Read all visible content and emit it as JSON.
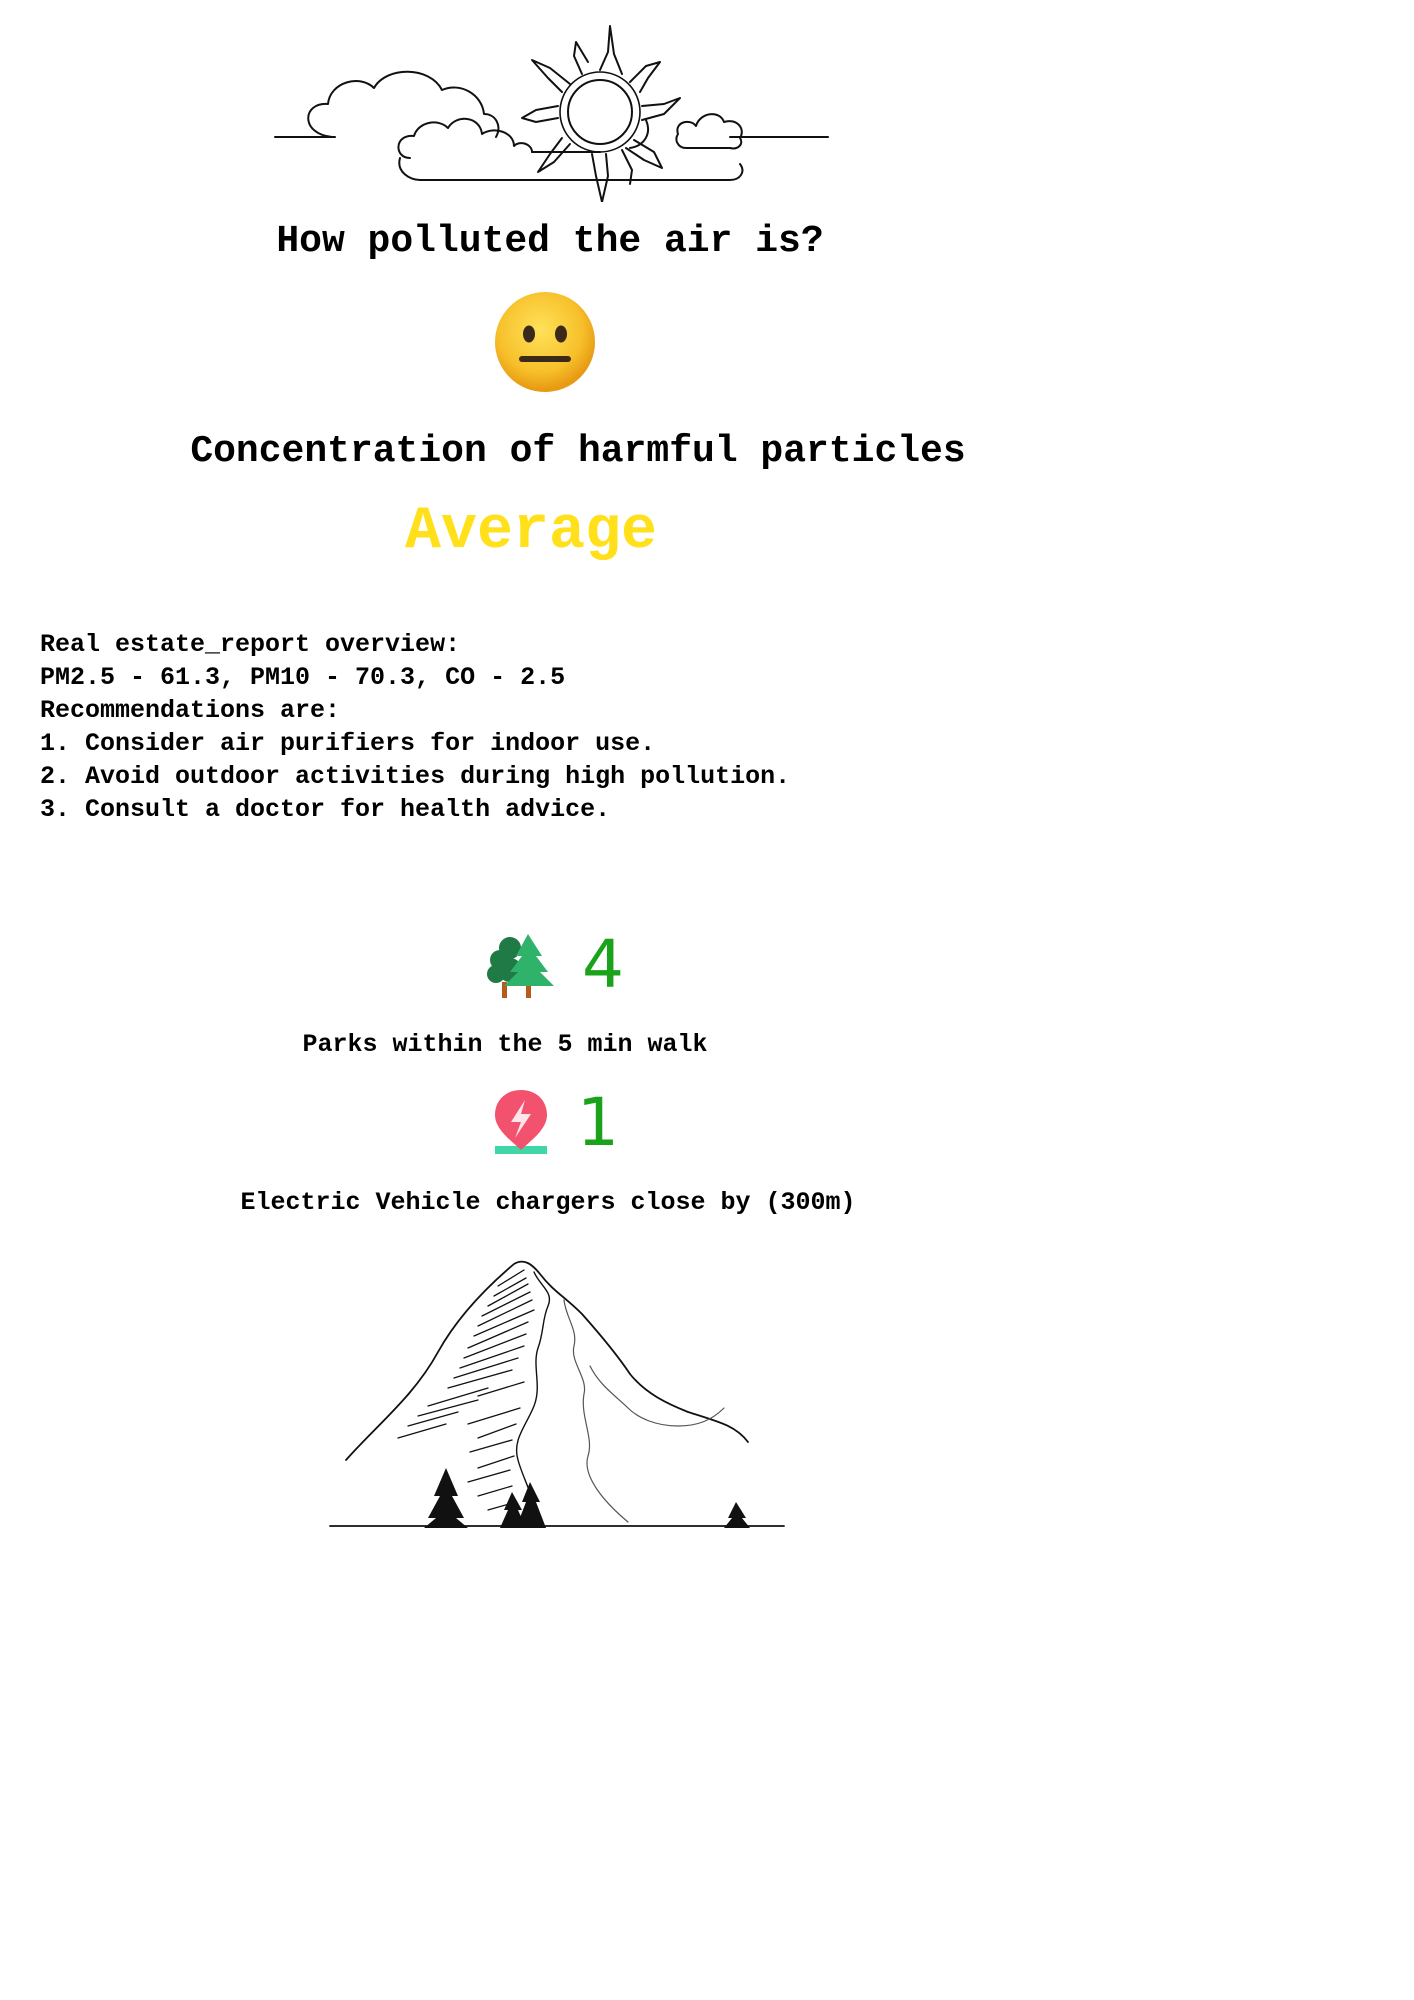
{
  "header": {
    "title": "How polluted the air is?",
    "mood_icon": "neutral-face-icon"
  },
  "air": {
    "concentration_label": "Concentration of harmful particles",
    "level": "Average",
    "level_color": "#ffe01a"
  },
  "report": {
    "lines": [
      "Real estate_report overview:",
      "PM2.5 - 61.3, PM10 - 70.3, CO - 2.5",
      "Recommendations are:",
      "1. Consider air purifiers for indoor use.",
      "2. Avoid outdoor activities during high pollution.",
      "3. Consult a doctor for health advice."
    ]
  },
  "stats": {
    "number_color": "#1aa31a",
    "parks": {
      "icon": "trees-icon",
      "count": "4",
      "label": "Parks within the 5 min walk"
    },
    "chargers": {
      "icon": "ev-charger-pin-icon",
      "count": "1",
      "label": "Electric Vehicle chargers close by (300m)"
    }
  },
  "illustrations": {
    "top": "sun-and-clouds-illustration",
    "bottom": "mountain-illustration"
  }
}
